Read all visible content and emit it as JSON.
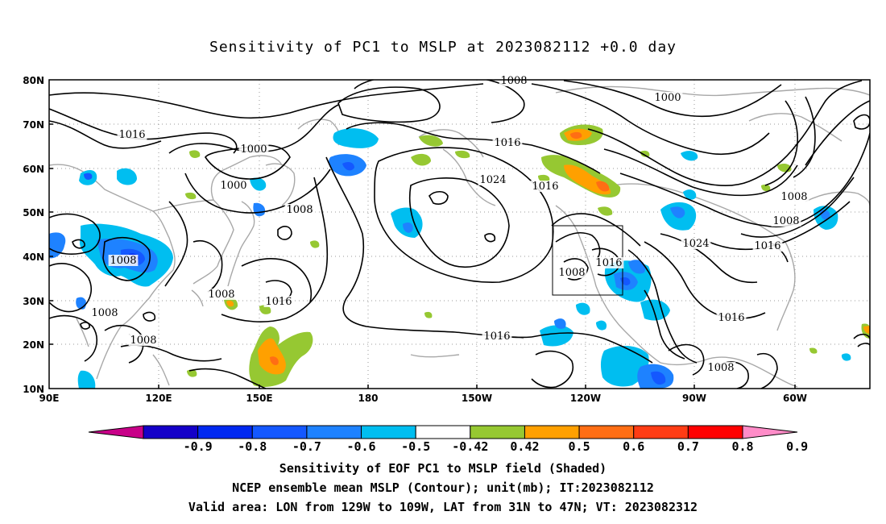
{
  "title": "Sensitivity of PC1 to MSLP at 2023082112 +0.0 day",
  "axes": {
    "lat_labels": [
      "80N",
      "70N",
      "60N",
      "50N",
      "40N",
      "30N",
      "20N",
      "10N"
    ],
    "lon_labels": [
      "90E",
      "120E",
      "150E",
      "180",
      "150W",
      "120W",
      "90W",
      "60W"
    ]
  },
  "contour_labels": [
    "1008",
    "1000",
    "1016",
    "1008",
    "1000",
    "1008",
    "1016",
    "1024",
    "1016",
    "1008",
    "1008",
    "1016",
    "1008",
    "1008",
    "1016",
    "1024",
    "1016",
    "1008",
    "1000",
    "1016",
    "1008",
    "1016",
    "1008",
    "1016"
  ],
  "colorbar": {
    "labels": [
      "-0.9",
      "-0.8",
      "-0.7",
      "-0.6",
      "-0.5",
      "-0.42",
      "0.42",
      "0.5",
      "0.6",
      "0.7",
      "0.8",
      "0.9"
    ],
    "colors": [
      "#c80088",
      "#1400c8",
      "#0028f0",
      "#1458ff",
      "#1e82ff",
      "#00bef0",
      "#ffffff",
      "#96c832",
      "#ffa000",
      "#ff6e14",
      "#ff3c14",
      "#ff0000",
      "#ff8cc8"
    ]
  },
  "captions": [
    "Sensitivity of EOF PC1 to MSLP field (Shaded)",
    "NCEP ensemble mean MSLP (Contour); unit(mb); IT:2023082112",
    "Valid area: LON from 129W to 109W, LAT from 31N to 47N; VT: 2023082312"
  ]
}
